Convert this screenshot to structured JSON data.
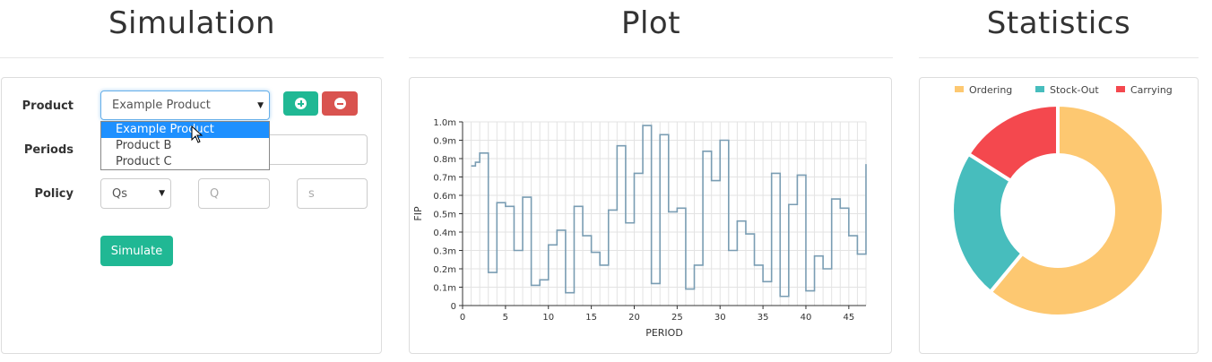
{
  "simulation": {
    "title": "Simulation",
    "product_label": "Product",
    "product_value": "Example Product",
    "product_options": [
      "Example Product",
      "Product B",
      "Product C"
    ],
    "periods_label": "Periods",
    "policy_label": "Policy",
    "policy_value": "Qs",
    "q_placeholder": "Q",
    "s_placeholder": "s",
    "simulate_label": "Simulate"
  },
  "plot": {
    "title": "Plot",
    "chart_data": {
      "type": "line",
      "step": true,
      "xlabel": "PERIOD",
      "ylabel": "FIP",
      "xlim": [
        0,
        47
      ],
      "ylim": [
        0,
        1.0
      ],
      "x_ticks": [
        0,
        5,
        10,
        15,
        20,
        25,
        30,
        35,
        40,
        45
      ],
      "y_ticks": [
        "0",
        "0.1m",
        "0.2m",
        "0.3m",
        "0.4m",
        "0.5m",
        "0.6m",
        "0.7m",
        "0.8m",
        "0.9m",
        "1.0m"
      ],
      "color": "#7a9db3",
      "x": [
        1,
        1.5,
        2,
        3,
        4,
        5,
        6,
        7,
        8,
        9,
        10,
        11,
        12,
        13,
        14,
        15,
        16,
        17,
        18,
        19,
        20,
        21,
        22,
        23,
        24,
        25,
        26,
        27,
        28,
        29,
        30,
        31,
        32,
        33,
        34,
        35,
        36,
        37,
        38,
        39,
        40,
        41,
        42,
        43,
        44,
        45,
        46,
        47
      ],
      "values": [
        0.76,
        0.78,
        0.83,
        0.18,
        0.56,
        0.54,
        0.3,
        0.59,
        0.11,
        0.14,
        0.33,
        0.41,
        0.07,
        0.54,
        0.38,
        0.29,
        0.22,
        0.52,
        0.87,
        0.45,
        0.72,
        0.98,
        0.12,
        0.93,
        0.51,
        0.53,
        0.09,
        0.22,
        0.84,
        0.68,
        0.9,
        0.3,
        0.46,
        0.39,
        0.22,
        0.13,
        0.72,
        0.05,
        0.55,
        0.71,
        0.08,
        0.27,
        0.2,
        0.58,
        0.53,
        0.38,
        0.28,
        0.77
      ]
    }
  },
  "statistics": {
    "title": "Statistics",
    "chart_data": {
      "type": "pie",
      "donut": true,
      "legend_position": "top",
      "series": [
        {
          "name": "Ordering",
          "value": 61,
          "color": "#fdc871"
        },
        {
          "name": "Stock-Out",
          "value": 23,
          "color": "#47bdbd"
        },
        {
          "name": "Carrying",
          "value": 16,
          "color": "#f4484e"
        }
      ]
    }
  }
}
